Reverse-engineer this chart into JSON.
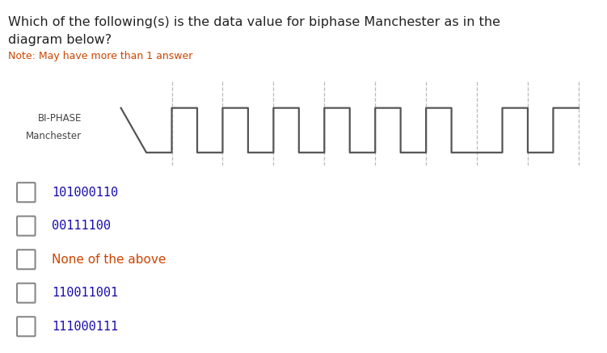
{
  "title_line1": "Which of the following(s) is the data value for biphase Manchester as in the",
  "title_line2": "diagram below?",
  "title_color": "#222222",
  "note": "Note: May have more than 1 answer",
  "note_color": "#CC4400",
  "label_line1": "BI-PHASE",
  "label_line2": "Manchester",
  "label_color": "#444444",
  "waveform_color": "#555555",
  "options": [
    "101000110",
    "00111100",
    "None of the above",
    "110011001",
    "111000111"
  ],
  "option_colors": [
    "#1a0dab",
    "#1a0dab",
    "#CC4400",
    "#1a0dab",
    "#1a0dab"
  ],
  "background_color": "#ffffff",
  "waveform_x": [
    0.0,
    0.0,
    0.5,
    0.5,
    1.0,
    1.0,
    1.5,
    1.5,
    2.0,
    2.0,
    2.5,
    2.5,
    3.0,
    3.0,
    3.5,
    3.5,
    4.0,
    4.0,
    4.5,
    4.5,
    5.0,
    5.0,
    5.5,
    5.5,
    6.0,
    6.0,
    6.5,
    6.5,
    7.0,
    7.0,
    7.5,
    7.5,
    8.0,
    8.0,
    8.5,
    8.5,
    9.0
  ],
  "waveform_y": [
    1,
    1,
    0,
    0,
    0,
    1,
    1,
    0,
    0,
    1,
    1,
    0,
    0,
    1,
    1,
    0,
    0,
    1,
    1,
    0,
    0,
    1,
    1,
    0,
    0,
    1,
    1,
    0,
    0,
    0,
    0,
    1,
    1,
    0,
    0,
    1,
    1
  ],
  "dashed_x": [
    1.0,
    2.0,
    3.0,
    4.0,
    5.0,
    6.0,
    7.0,
    8.0,
    9.0
  ],
  "waveform_xlim": [
    -0.05,
    9.2
  ],
  "waveform_ylim": [
    -0.3,
    1.6
  ]
}
